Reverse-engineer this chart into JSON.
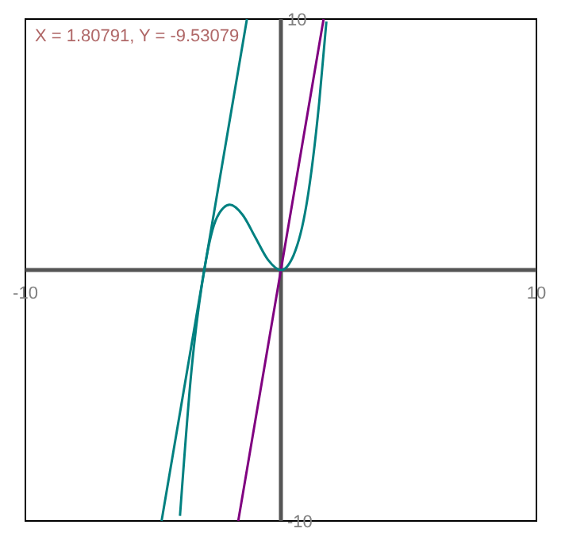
{
  "chart_data": {
    "type": "line",
    "xlim": [
      -10,
      10
    ],
    "ylim": [
      -10,
      10
    ],
    "xticks": [
      -10,
      10
    ],
    "yticks": [
      -10,
      10
    ],
    "grid": false,
    "marker": "none",
    "line_style": "solid",
    "annotations": [
      "X = 1.80791, Y = -9.53079"
    ],
    "series": [
      {
        "color": "#008080",
        "x": [
          -4.67,
          -1.33
        ],
        "values": [
          -10,
          10
        ]
      },
      {
        "color": "#800080",
        "x": [
          -1.67,
          1.67
        ],
        "values": [
          -10,
          10
        ]
      },
      {
        "color": "#008080",
        "x": [
          -3.95,
          -3.5,
          -3,
          -2.5,
          -2,
          -1.5,
          -1,
          -0.5,
          0,
          0.5,
          1,
          1.5,
          1.78
        ],
        "values": [
          -9.8,
          -4,
          0,
          2.1,
          2.6,
          2.2,
          1.3,
          0.4,
          0,
          0.6,
          2.6,
          6.7,
          9.9
        ]
      }
    ]
  }
}
